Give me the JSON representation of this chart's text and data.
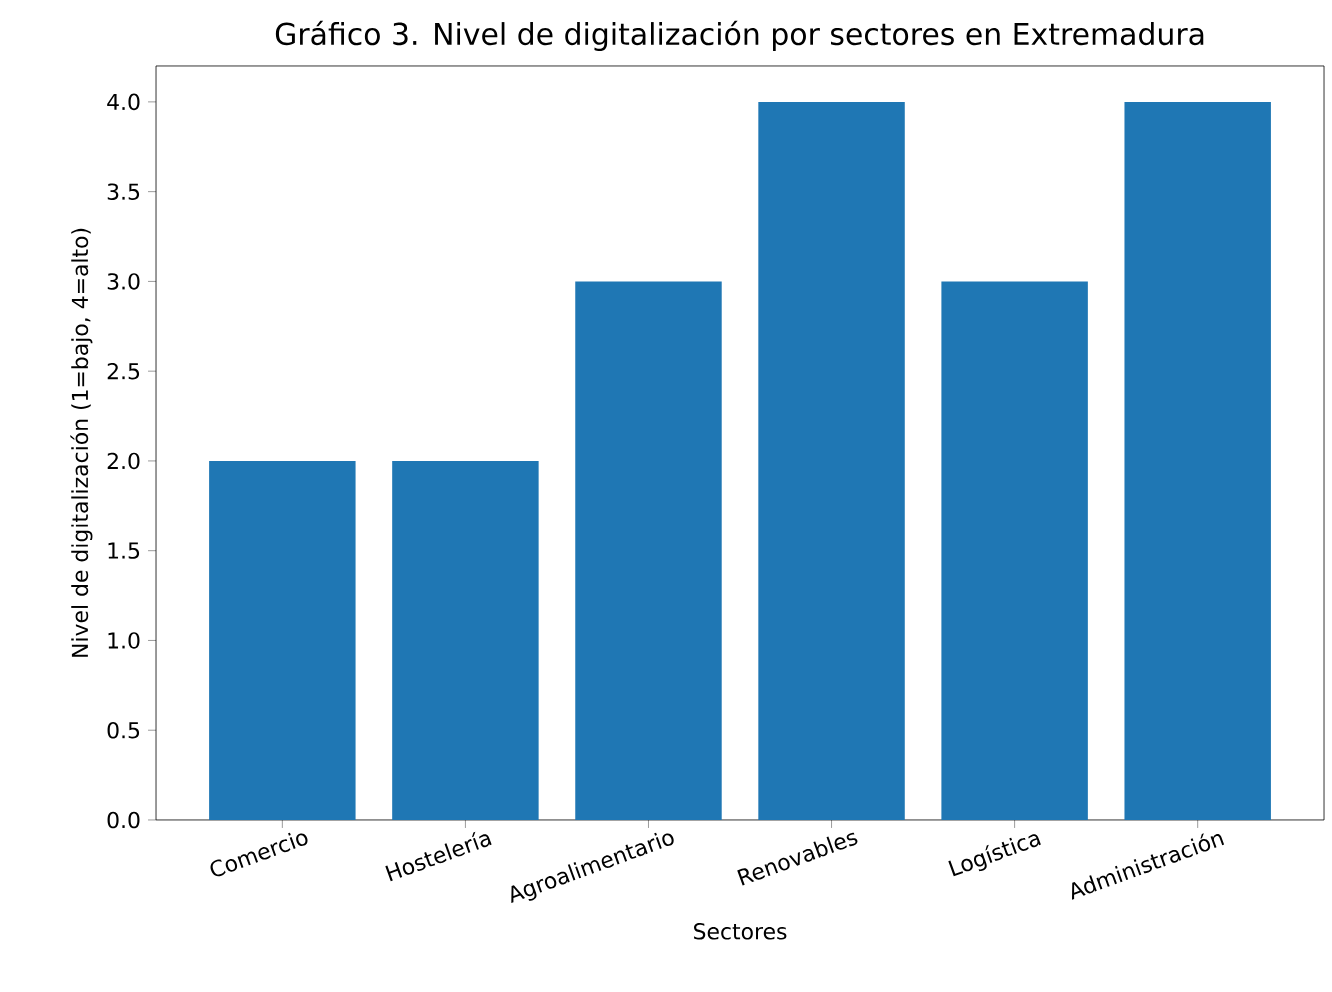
{
  "chart_data": {
    "type": "bar",
    "title": "Gráfico 3. Nivel de digitalización por sectores en Extremadura",
    "xlabel": "Sectores",
    "ylabel": "Nivel de digitalización (1=bajo, 4=alto)",
    "categories": [
      "Comercio",
      "Hostelería",
      "Agroalimentario",
      "Renovables",
      "Logística",
      "Administración"
    ],
    "values": [
      2,
      2,
      3,
      4,
      3,
      4
    ],
    "color": "#1f77b4",
    "ylim": [
      0,
      4.2
    ],
    "yticks": [
      {
        "value": 0,
        "label": "0.0"
      },
      {
        "value": 0.5,
        "label": "0.5"
      },
      {
        "value": 1,
        "label": "1.0"
      },
      {
        "value": 1.5,
        "label": "1.5"
      },
      {
        "value": 2,
        "label": "2.0"
      },
      {
        "value": 2.5,
        "label": "2.5"
      },
      {
        "value": 3,
        "label": "3.0"
      },
      {
        "value": 3.5,
        "label": "3.5"
      },
      {
        "value": 4,
        "label": "4.0"
      }
    ],
    "grid": false
  }
}
